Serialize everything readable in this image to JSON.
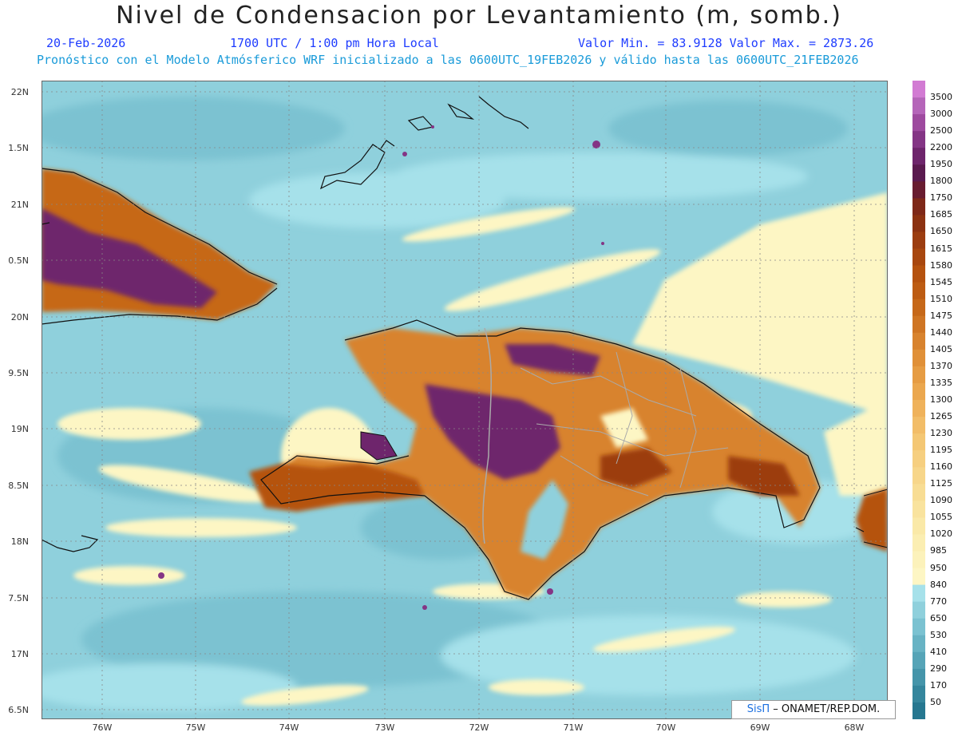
{
  "header": {
    "title": "Nivel de Condensacion por Levantamiento (m, somb.)",
    "date": "20-Feb-2026",
    "time": "1700 UTC / 1:00 pm Hora Local",
    "minmax": "Valor Min. = 83.9128  Valor Max. = 2873.26",
    "forecast": "Pronóstico con el Modelo Atmósferico WRF inicializado a las 0600UTC_19FEB2026 y válido hasta las  0600UTC_21FEB2026"
  },
  "axes": {
    "lat_labels": [
      "22N",
      "1.5N",
      "21N",
      "0.5N",
      "20N",
      "9.5N",
      "19N",
      "8.5N",
      "18N",
      "7.5N",
      "17N",
      "6.5N"
    ],
    "lon_labels": [
      "76W",
      "75W",
      "74W",
      "73W",
      "72W",
      "71W",
      "70W",
      "69W",
      "68W"
    ]
  },
  "legend": {
    "levels": [
      "3500",
      "3000",
      "2500",
      "2200",
      "1950",
      "1800",
      "1750",
      "1685",
      "1650",
      "1615",
      "1580",
      "1545",
      "1510",
      "1475",
      "1440",
      "1405",
      "1370",
      "1335",
      "1300",
      "1265",
      "1230",
      "1195",
      "1160",
      "1125",
      "1090",
      "1055",
      "1020",
      "985",
      "950",
      "840",
      "770",
      "650",
      "530",
      "410",
      "290",
      "170",
      "50"
    ],
    "colors": [
      "#b565b9",
      "#9e4a9f",
      "#843585",
      "#6e256c",
      "#5a1a4f",
      "#681c30",
      "#7e2818",
      "#8c3211",
      "#9c3d10",
      "#a8470f",
      "#b5520f",
      "#bd5c13",
      "#c66819",
      "#cf7523",
      "#d8832e",
      "#e09038",
      "#e69c43",
      "#eba74e",
      "#efb25b",
      "#f2bd68",
      "#f4c774",
      "#f6cf80",
      "#f7d68a",
      "#f8dd94",
      "#f9e39e",
      "#fae9a8",
      "#fbeeb2",
      "#fcf2bb",
      "#fdf6c4",
      "#a6e1ea",
      "#8fd0dc",
      "#7bc2d1",
      "#68b3c4",
      "#56a4b7",
      "#4595aa",
      "#35869d",
      "#267790"
    ],
    "top_color": "#d27bd3"
  },
  "credit": {
    "brand": "SisΠ",
    "org": "– ONAMET/REP.DOM."
  }
}
